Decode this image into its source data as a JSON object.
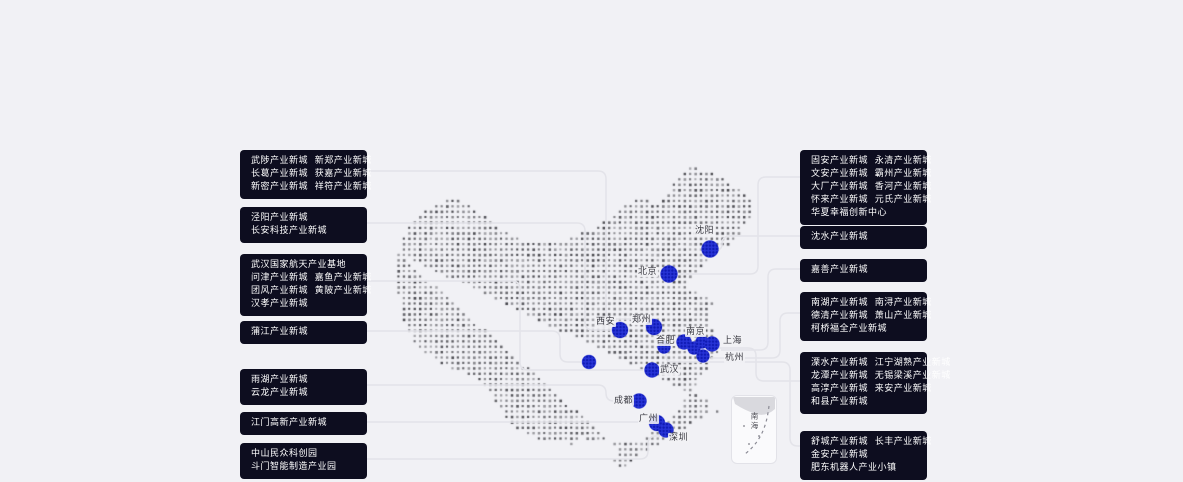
{
  "panels": {
    "left": [
      {
        "lines": [
          "武陟产业新城  新郑产业新城",
          "长葛产业新城  获嘉产业新城",
          "新密产业新城  祥符产业新城"
        ]
      },
      {
        "lines": [
          "泾阳产业新城",
          "长安科技产业新城"
        ]
      },
      {
        "lines": [
          "武汉国家航天产业基地",
          "问津产业新城  嘉鱼产业新城",
          "团风产业新城  黄陂产业新城",
          "汉孝产业新城"
        ]
      },
      {
        "lines": [
          "蒲江产业新城"
        ]
      },
      {
        "lines": [
          "雨湖产业新城",
          "云龙产业新城"
        ]
      },
      {
        "lines": [
          "江门高新产业新城"
        ]
      },
      {
        "lines": [
          "中山民众科创园",
          "斗门智能制造产业园"
        ]
      }
    ],
    "right": [
      {
        "lines": [
          "固安产业新城  永清产业新城",
          "文安产业新城  霸州产业新城",
          "大厂产业新城  香河产业新城",
          "怀来产业新城  元氏产业新城",
          "华夏幸福创新中心"
        ]
      },
      {
        "lines": [
          "沈水产业新城"
        ]
      },
      {
        "lines": [
          "嘉善产业新城"
        ]
      },
      {
        "lines": [
          "南湖产业新城  南浔产业新城",
          "德清产业新城  萧山产业新城",
          "柯桥福全产业新城"
        ]
      },
      {
        "lines": [
          "溧水产业新城  江宁湖熟产业新城",
          "龙潭产业新城  无锡梁溪产业新城",
          "高淳产业新城  来安产业新城",
          "和县产业新城"
        ]
      },
      {
        "lines": [
          "舒城产业新城  长丰产业新城",
          "金安产业新城",
          "肥东机器人产业小镇"
        ]
      }
    ]
  },
  "map": {
    "city_labels": [
      "沈阳",
      "北京",
      "西安",
      "郑州",
      "合肥",
      "南京",
      "上海",
      "杭州",
      "武汉",
      "成都",
      "广州",
      "深圳"
    ],
    "inset": {
      "label": "南海"
    }
  },
  "colors": {
    "panel_bg": "#0d0d1f",
    "panel_text": "#ffffff",
    "marker_blue": "#2733d6",
    "map_dot": "#3a3a40",
    "connector": "#e3e3e9",
    "background": "#f1f1f5"
  }
}
